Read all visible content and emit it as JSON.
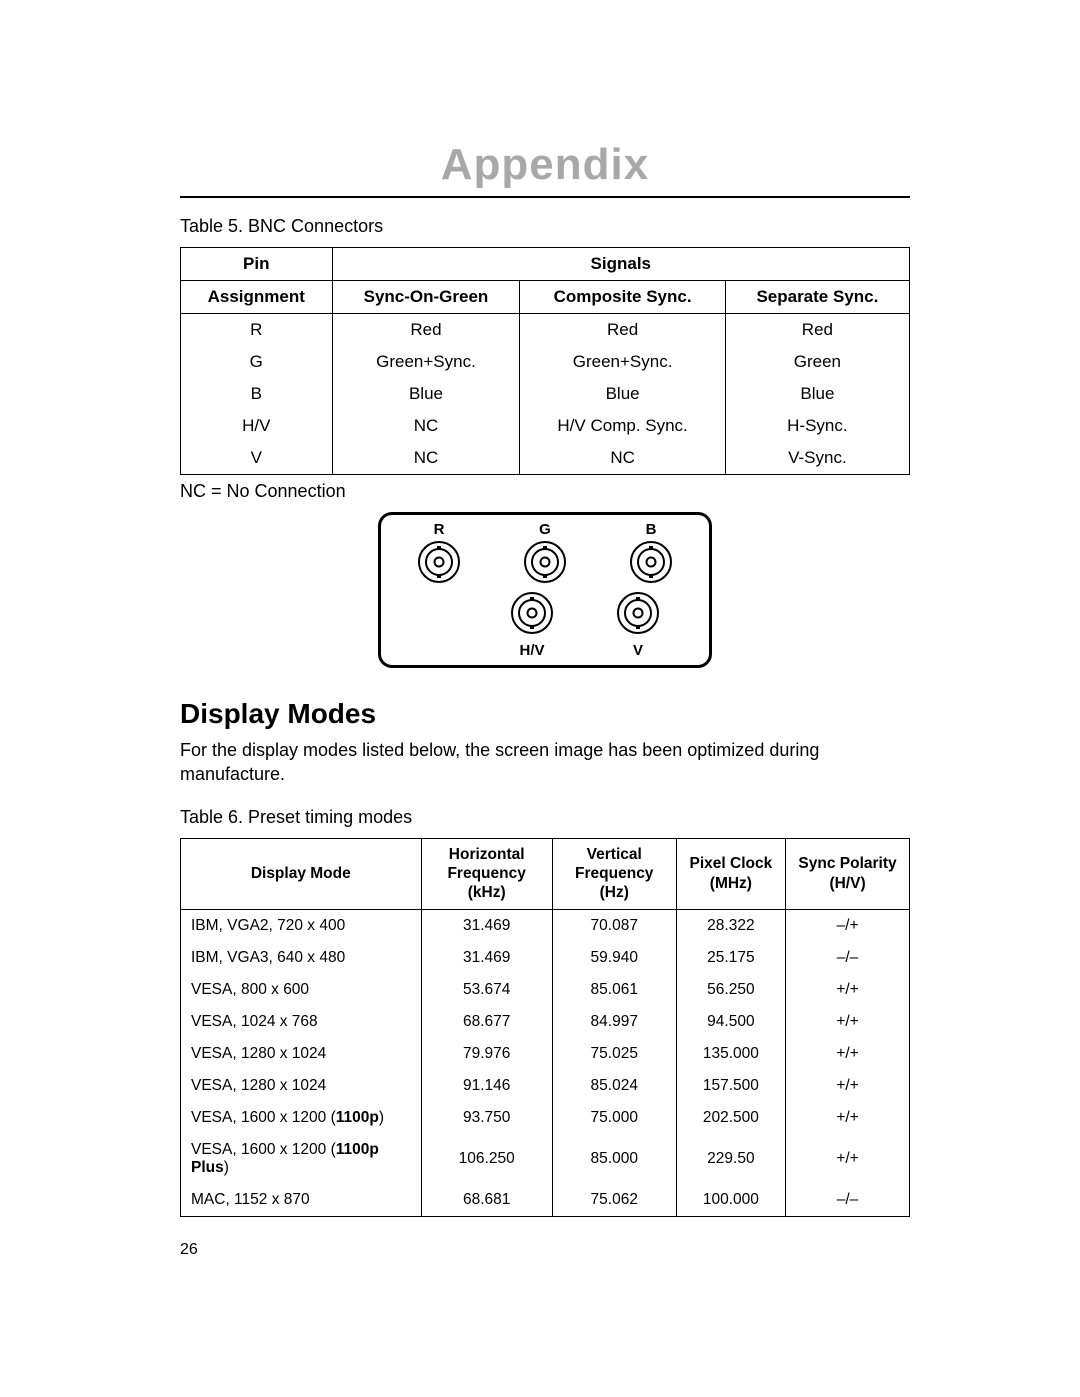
{
  "title": "Appendix",
  "title_color": "#a8a8a8",
  "hr_color": "#000000",
  "bnc_table": {
    "caption": "Table 5.  BNC Connectors",
    "header_top": {
      "pin": "Pin",
      "signals": "Signals"
    },
    "header_bottom": [
      "Assignment",
      "Sync-On-Green",
      "Composite Sync.",
      "Separate Sync."
    ],
    "rows": [
      [
        "R",
        "Red",
        "Red",
        "Red"
      ],
      [
        "G",
        "Green+Sync.",
        "Green+Sync.",
        "Green"
      ],
      [
        "B",
        "Blue",
        "Blue",
        "Blue"
      ],
      [
        "H/V",
        "NC",
        "H/V Comp. Sync.",
        "H-Sync."
      ],
      [
        "V",
        "NC",
        "NC",
        "V-Sync."
      ]
    ],
    "note": "NC = No Connection"
  },
  "connector_panel": {
    "top_labels": [
      "R",
      "G",
      "B"
    ],
    "bottom_labels": [
      "H/V",
      "V"
    ],
    "stroke": "#000000",
    "border_radius": 14,
    "border_width": 3
  },
  "display_modes": {
    "heading": "Display Modes",
    "body": "For the display modes listed below, the screen image has been optimized during manufacture.",
    "caption": "Table 6.  Preset timing modes",
    "columns": [
      {
        "line1": "Display Mode",
        "line2": ""
      },
      {
        "line1": "Horizontal",
        "line2": "Frequency (kHz)"
      },
      {
        "line1": "Vertical",
        "line2": "Frequency (Hz)"
      },
      {
        "line1": "Pixel Clock",
        "line2": "(MHz)"
      },
      {
        "line1": "Sync Polarity",
        "line2": "(H/V)"
      }
    ],
    "rows": [
      {
        "mode_prefix": "IBM, VGA2, 720 x 400",
        "mode_bold": "",
        "mode_suffix": "",
        "h": "31.469",
        "v": "70.087",
        "pc": "28.322",
        "sp": "–/+"
      },
      {
        "mode_prefix": "IBM, VGA3, 640 x 480",
        "mode_bold": "",
        "mode_suffix": "",
        "h": "31.469",
        "v": "59.940",
        "pc": "25.175",
        "sp": "–/–"
      },
      {
        "mode_prefix": "VESA, 800 x 600",
        "mode_bold": "",
        "mode_suffix": "",
        "h": "53.674",
        "v": "85.061",
        "pc": "56.250",
        "sp": "+/+"
      },
      {
        "mode_prefix": "VESA, 1024 x 768",
        "mode_bold": "",
        "mode_suffix": "",
        "h": "68.677",
        "v": "84.997",
        "pc": "94.500",
        "sp": "+/+"
      },
      {
        "mode_prefix": "VESA, 1280 x 1024",
        "mode_bold": "",
        "mode_suffix": "",
        "h": "79.976",
        "v": "75.025",
        "pc": "135.000",
        "sp": "+/+"
      },
      {
        "mode_prefix": "VESA, 1280 x 1024",
        "mode_bold": "",
        "mode_suffix": "",
        "h": "91.146",
        "v": "85.024",
        "pc": "157.500",
        "sp": "+/+"
      },
      {
        "mode_prefix": "VESA, 1600 x 1200 (",
        "mode_bold": "1100p",
        "mode_suffix": ")",
        "h": "93.750",
        "v": "75.000",
        "pc": "202.500",
        "sp": "+/+"
      },
      {
        "mode_prefix": "VESA, 1600 x 1200 (",
        "mode_bold": "1100p Plus",
        "mode_suffix": ")",
        "h": "106.250",
        "v": "85.000",
        "pc": "229.50",
        "sp": "+/+"
      },
      {
        "mode_prefix": "MAC, 1152 x 870",
        "mode_bold": "",
        "mode_suffix": "",
        "h": "68.681",
        "v": "75.062",
        "pc": "100.000",
        "sp": "–/–"
      }
    ]
  },
  "page_number": "26",
  "fonts": {
    "title_size": 44,
    "caption_size": 18,
    "body_size": 18,
    "table_bnc_size": 17,
    "table_modes_size": 15.5,
    "section_size": 28
  },
  "colors": {
    "background": "#ffffff",
    "text": "#000000",
    "border": "#000000"
  }
}
